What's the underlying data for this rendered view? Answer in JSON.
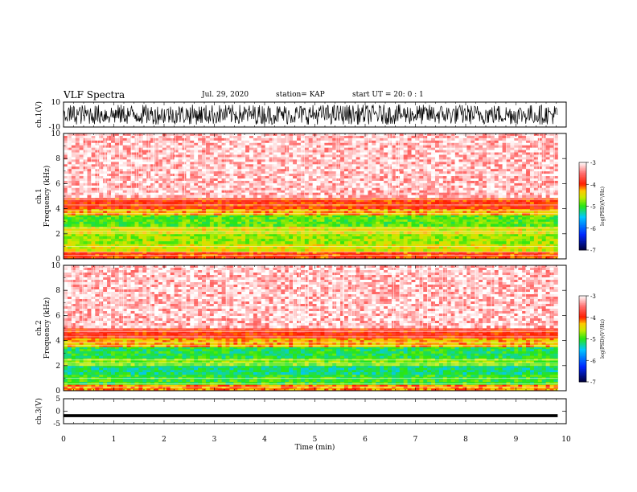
{
  "header": {
    "title": "VLF Spectra",
    "date": "Jul. 29, 2020",
    "station": "station= KAP",
    "start": "start UT = 20: 0 : 1"
  },
  "chart_data": [
    {
      "type": "line",
      "panel": "ch1-waveform",
      "ylabel": "ch.1(V)",
      "ylim": [
        -10,
        10
      ],
      "yticks": [
        "10",
        "-10"
      ],
      "xlim": [
        0,
        10
      ],
      "description_values": {
        "amplitude_range": [
          -8,
          8
        ]
      }
    },
    {
      "type": "heatmap",
      "panel": "ch1-spectrogram",
      "ylabel_line1": "ch.1",
      "ylabel_line2": "Frequency (kHz)",
      "ylim": [
        0,
        10
      ],
      "yticks": [
        "0",
        "2",
        "4",
        "6",
        "8",
        "10"
      ],
      "xlim": [
        0,
        10
      ],
      "colorbar": {
        "label": "log(PSD)(V²/Hz)",
        "range": [
          -7,
          -3
        ],
        "ticks": [
          "-3",
          "-4",
          "-5",
          "-6",
          "-7"
        ]
      },
      "bands": [
        {
          "from": 0,
          "to": 0.6,
          "level": -4.0
        },
        {
          "from": 0.6,
          "to": 1.2,
          "level": -4.5
        },
        {
          "from": 1.2,
          "to": 2.0,
          "level": -4.7
        },
        {
          "from": 2.0,
          "to": 2.6,
          "level": -4.5
        },
        {
          "from": 2.6,
          "to": 3.5,
          "level": -4.9
        },
        {
          "from": 3.5,
          "to": 4.0,
          "level": -4.3
        },
        {
          "from": 4.0,
          "to": 4.9,
          "level": -3.95
        },
        {
          "from": 4.9,
          "to": 10.0,
          "level": -3.3
        }
      ]
    },
    {
      "type": "heatmap",
      "panel": "ch2-spectrogram",
      "ylabel_line1": "ch.2",
      "ylabel_line2": "Frequency (kHz)",
      "ylim": [
        0,
        10
      ],
      "yticks": [
        "0",
        "2",
        "4",
        "6",
        "8",
        "10"
      ],
      "xlim": [
        0,
        10
      ],
      "colorbar": {
        "label": "log(PSD)(V²/Hz)",
        "range": [
          -7,
          -3
        ],
        "ticks": [
          "-3",
          "-4",
          "-5",
          "-6",
          "-7"
        ]
      },
      "bands": [
        {
          "from": 0,
          "to": 0.5,
          "level": -4.2
        },
        {
          "from": 0.5,
          "to": 1.3,
          "level": -5.0
        },
        {
          "from": 1.3,
          "to": 2.0,
          "level": -5.2
        },
        {
          "from": 2.0,
          "to": 2.6,
          "level": -4.8
        },
        {
          "from": 2.6,
          "to": 3.5,
          "level": -5.1
        },
        {
          "from": 3.5,
          "to": 4.2,
          "level": -4.3
        },
        {
          "from": 4.2,
          "to": 5.0,
          "level": -3.9
        },
        {
          "from": 5.0,
          "to": 10.0,
          "level": -3.3
        }
      ]
    },
    {
      "type": "line",
      "panel": "ch3-waveform",
      "ylabel": "ch.3(V)",
      "ylim": [
        -5,
        5
      ],
      "yticks": [
        "5",
        "0",
        "-5"
      ],
      "xlim": [
        0,
        10
      ],
      "description_values": {
        "amplitude_range": [
          -2.4,
          -1.2
        ]
      }
    }
  ],
  "x_axis": {
    "label": "Time (min)",
    "ticks": [
      "0",
      "1",
      "2",
      "3",
      "4",
      "5",
      "6",
      "7",
      "8",
      "9",
      "10"
    ],
    "data_end": 9.83
  }
}
